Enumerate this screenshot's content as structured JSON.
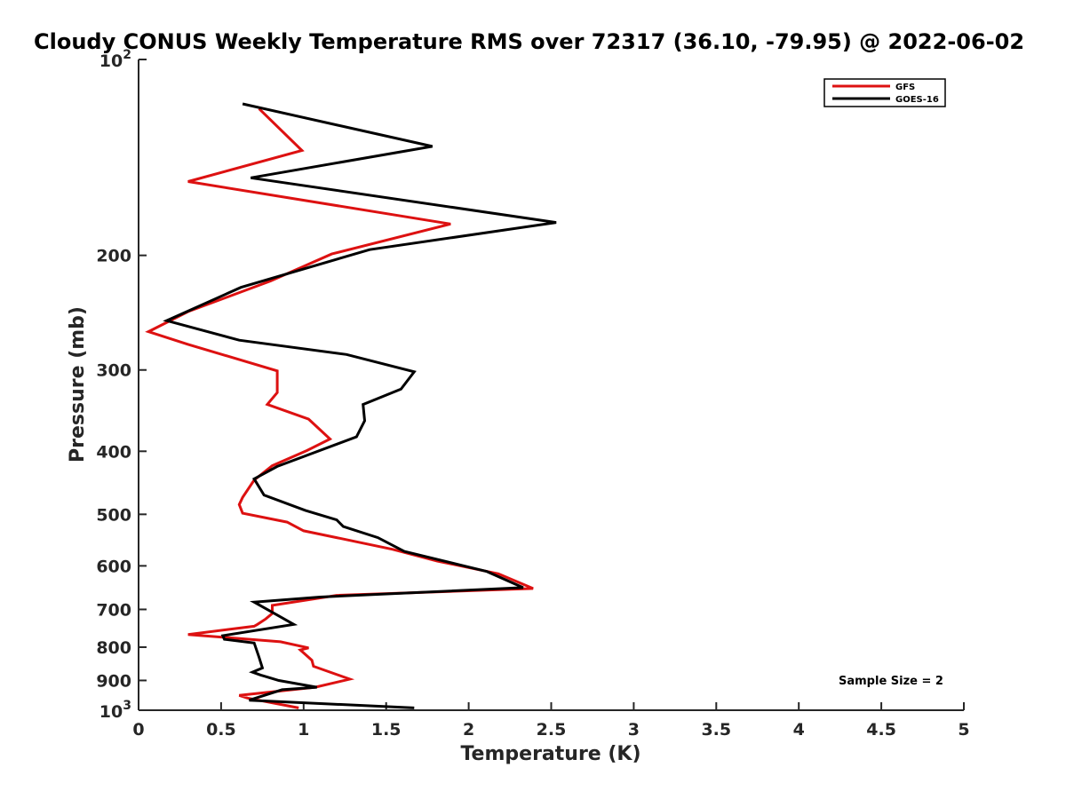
{
  "chart_data": {
    "type": "line",
    "title": "Cloudy CONUS Weekly Temperature RMS over 72317 (36.10, -79.95) @ 2022-06-02",
    "xlabel": "Temperature (K)",
    "ylabel": "Pressure (mb)",
    "xlim": [
      0,
      5
    ],
    "ylim": [
      100,
      1000
    ],
    "yscale": "log",
    "y_reversed": true,
    "x_ticks": [
      "0",
      "0.5",
      "1",
      "1.5",
      "2",
      "2.5",
      "3",
      "3.5",
      "4",
      "4.5",
      "5"
    ],
    "y_ticks": [
      {
        "value": 100,
        "base": "10",
        "exp": "2"
      },
      {
        "value": 200,
        "label": "200"
      },
      {
        "value": 300,
        "label": "300"
      },
      {
        "value": 400,
        "label": "400"
      },
      {
        "value": 500,
        "label": "500"
      },
      {
        "value": 600,
        "label": "600"
      },
      {
        "value": 700,
        "label": "700"
      },
      {
        "value": 800,
        "label": "800"
      },
      {
        "value": 900,
        "label": "900"
      },
      {
        "value": 1000,
        "base": "10",
        "exp": "3"
      }
    ],
    "legend": {
      "position": "top-right"
    },
    "annotation": "Sample Size = 2",
    "series": [
      {
        "name": "GFS",
        "color": "#dd1111",
        "points": [
          [
            0.73,
            119
          ],
          [
            0.99,
            138
          ],
          [
            0.3,
            154
          ],
          [
            1.89,
            179
          ],
          [
            1.17,
            199
          ],
          [
            0.8,
            219
          ],
          [
            0.3,
            244
          ],
          [
            0.06,
            262
          ],
          [
            0.3,
            274
          ],
          [
            0.84,
            301
          ],
          [
            0.84,
            325
          ],
          [
            0.78,
            339
          ],
          [
            1.03,
            357
          ],
          [
            1.16,
            383
          ],
          [
            1.02,
            399
          ],
          [
            0.81,
            421
          ],
          [
            0.7,
            443
          ],
          [
            0.63,
            471
          ],
          [
            0.61,
            483
          ],
          [
            0.63,
            498
          ],
          [
            0.9,
            514
          ],
          [
            1.0,
            530
          ],
          [
            1.2,
            543
          ],
          [
            1.54,
            566
          ],
          [
            1.81,
            590
          ],
          [
            2.18,
            617
          ],
          [
            2.39,
            650
          ],
          [
            1.2,
            666
          ],
          [
            0.81,
            690
          ],
          [
            0.81,
            710
          ],
          [
            0.77,
            724
          ],
          [
            0.72,
            738
          ],
          [
            0.7,
            743
          ],
          [
            0.3,
            765
          ],
          [
            0.86,
            785
          ],
          [
            1.03,
            802
          ],
          [
            0.98,
            808
          ],
          [
            1.05,
            838
          ],
          [
            1.06,
            856
          ],
          [
            1.28,
            896
          ],
          [
            1.07,
            922
          ],
          [
            0.61,
            949
          ],
          [
            0.66,
            958
          ],
          [
            0.97,
            992
          ]
        ]
      },
      {
        "name": "GOES-16",
        "color": "#000000",
        "points": [
          [
            0.63,
            117
          ],
          [
            1.78,
            136
          ],
          [
            0.68,
            152
          ],
          [
            2.53,
            178
          ],
          [
            1.4,
            196
          ],
          [
            0.62,
            224
          ],
          [
            0.17,
            252
          ],
          [
            0.61,
            270
          ],
          [
            1.26,
            284
          ],
          [
            1.67,
            302
          ],
          [
            1.59,
            321
          ],
          [
            1.36,
            339
          ],
          [
            1.37,
            359
          ],
          [
            1.32,
            380
          ],
          [
            0.84,
            422
          ],
          [
            0.7,
            441
          ],
          [
            0.76,
            467
          ],
          [
            1.01,
            493
          ],
          [
            1.2,
            510
          ],
          [
            1.24,
            522
          ],
          [
            1.45,
            543
          ],
          [
            1.61,
            570
          ],
          [
            2.11,
            612
          ],
          [
            2.33,
            648
          ],
          [
            1.1,
            670
          ],
          [
            0.7,
            682
          ],
          [
            0.84,
            714
          ],
          [
            0.94,
            738
          ],
          [
            0.51,
            768
          ],
          [
            0.52,
            778
          ],
          [
            0.7,
            788
          ],
          [
            0.73,
            829
          ],
          [
            0.75,
            861
          ],
          [
            0.69,
            874
          ],
          [
            0.74,
            883
          ],
          [
            0.85,
            900
          ],
          [
            1.08,
            922
          ],
          [
            0.87,
            930
          ],
          [
            0.67,
            965
          ],
          [
            1.67,
            992
          ]
        ]
      }
    ]
  }
}
